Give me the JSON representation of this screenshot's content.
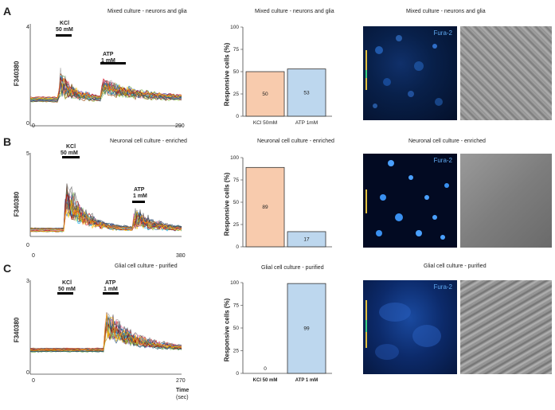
{
  "panels": [
    {
      "letter": "A",
      "trace_title": "Mixed culture - neurons and glia",
      "trace_ylabel": "F340380",
      "trace_ymax": "4",
      "trace_ymin": "0",
      "trace_xmin": "0",
      "trace_xmax": "290",
      "stim1_label_line1": "KCl",
      "stim1_label_line2": "50 mM",
      "stim2_label_line1": "ATP",
      "stim2_label_line2": "1 mM",
      "bar_title": "Mixed culture - neurons and glia",
      "image_title": "Mixed culture - neurons and glia",
      "fura_label": "Fura-2"
    },
    {
      "letter": "B",
      "trace_title": "Neuronal cell culture - enriched",
      "trace_ylabel": "F340380",
      "trace_ymax": "5",
      "trace_ymin": "0",
      "trace_xmin": "0",
      "trace_xmax": "380",
      "stim1_label_line1": "KCl",
      "stim1_label_line2": "50 mM",
      "stim2_label_line1": "ATP",
      "stim2_label_line2": "1 mM",
      "bar_title": "Neuronal cell culture - enriched",
      "image_title": "Neuronal cell culture - enriched",
      "fura_label": "Fura-2"
    },
    {
      "letter": "C",
      "trace_title": "Glial cell culture - purified",
      "trace_ylabel": "F340380",
      "trace_ymax": "3",
      "trace_ymin": "0",
      "trace_xmin": "0",
      "trace_xmax": "270",
      "time_label": "Time",
      "time_unit": "(sec)",
      "stim1_label_line1": "KCl",
      "stim1_label_line2": "50 mM",
      "stim2_label_line1": "ATP",
      "stim2_label_line2": "1 mM",
      "bar_title": "Glial cell culture - purified",
      "image_title": "Glial cell culture - purified",
      "fura_label": "Fura-2"
    }
  ],
  "bar_ylabel": "Responsive cells (%)",
  "colors": {
    "kcl": "#f8cbad",
    "atp": "#bdd7ee",
    "bar_edge": "#333333"
  },
  "chart_data": [
    {
      "type": "bar",
      "title": "Mixed culture - neurons and glia",
      "categories": [
        "KCl 50mM",
        "ATP 1mM"
      ],
      "values": [
        50,
        53
      ],
      "ylabel": "Responsive cells (%)",
      "ylim": [
        0,
        100
      ],
      "yticks": [
        0,
        25,
        50,
        75,
        100
      ]
    },
    {
      "type": "bar",
      "title": "Neuronal cell culture - enriched",
      "categories": [
        "",
        ""
      ],
      "values": [
        89,
        17
      ],
      "ylabel": "Responsive cells (%)",
      "ylim": [
        0,
        100
      ],
      "yticks": [
        0,
        25,
        50,
        75,
        100
      ]
    },
    {
      "type": "bar",
      "title": "Glial cell culture - purified",
      "categories": [
        "KCl 50 mM",
        "ATP 1 mM"
      ],
      "values": [
        0,
        99
      ],
      "ylabel": "Responsive cells (%)",
      "ylim": [
        0,
        100
      ],
      "yticks": [
        0,
        25,
        50,
        75,
        100
      ]
    }
  ]
}
